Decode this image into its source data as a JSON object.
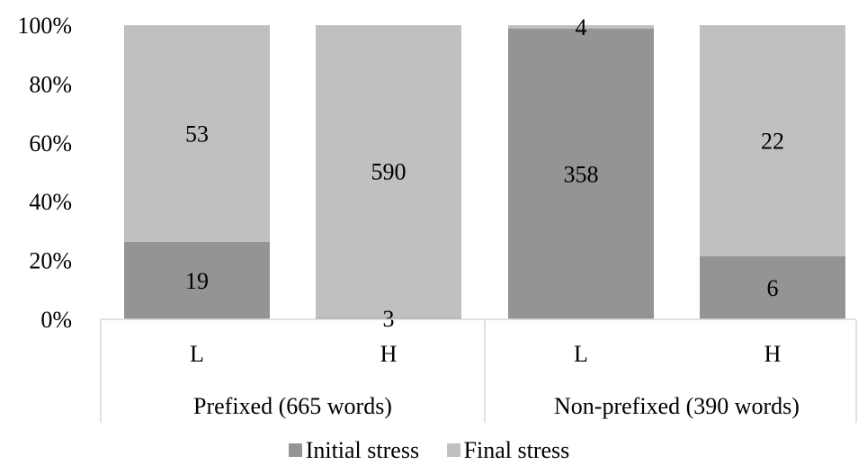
{
  "chart_data": {
    "type": "bar",
    "stacked": "percent",
    "groups": [
      {
        "label": "Prefixed (665 words)",
        "categories": [
          "L",
          "H"
        ]
      },
      {
        "label": "Non-prefixed (390 words)",
        "categories": [
          "L",
          "H"
        ]
      }
    ],
    "categories": [
      "L",
      "H",
      "L",
      "H"
    ],
    "series": [
      {
        "name": "Initial stress",
        "values": [
          19,
          3,
          358,
          6
        ],
        "color": "#949494"
      },
      {
        "name": "Final stress",
        "values": [
          53,
          590,
          4,
          22
        ],
        "color": "#c0c0c0"
      }
    ],
    "ylim": [
      0,
      100
    ],
    "yticks": [
      "0%",
      "20%",
      "40%",
      "60%",
      "80%",
      "100%"
    ],
    "grid": false,
    "legend_position": "bottom"
  }
}
